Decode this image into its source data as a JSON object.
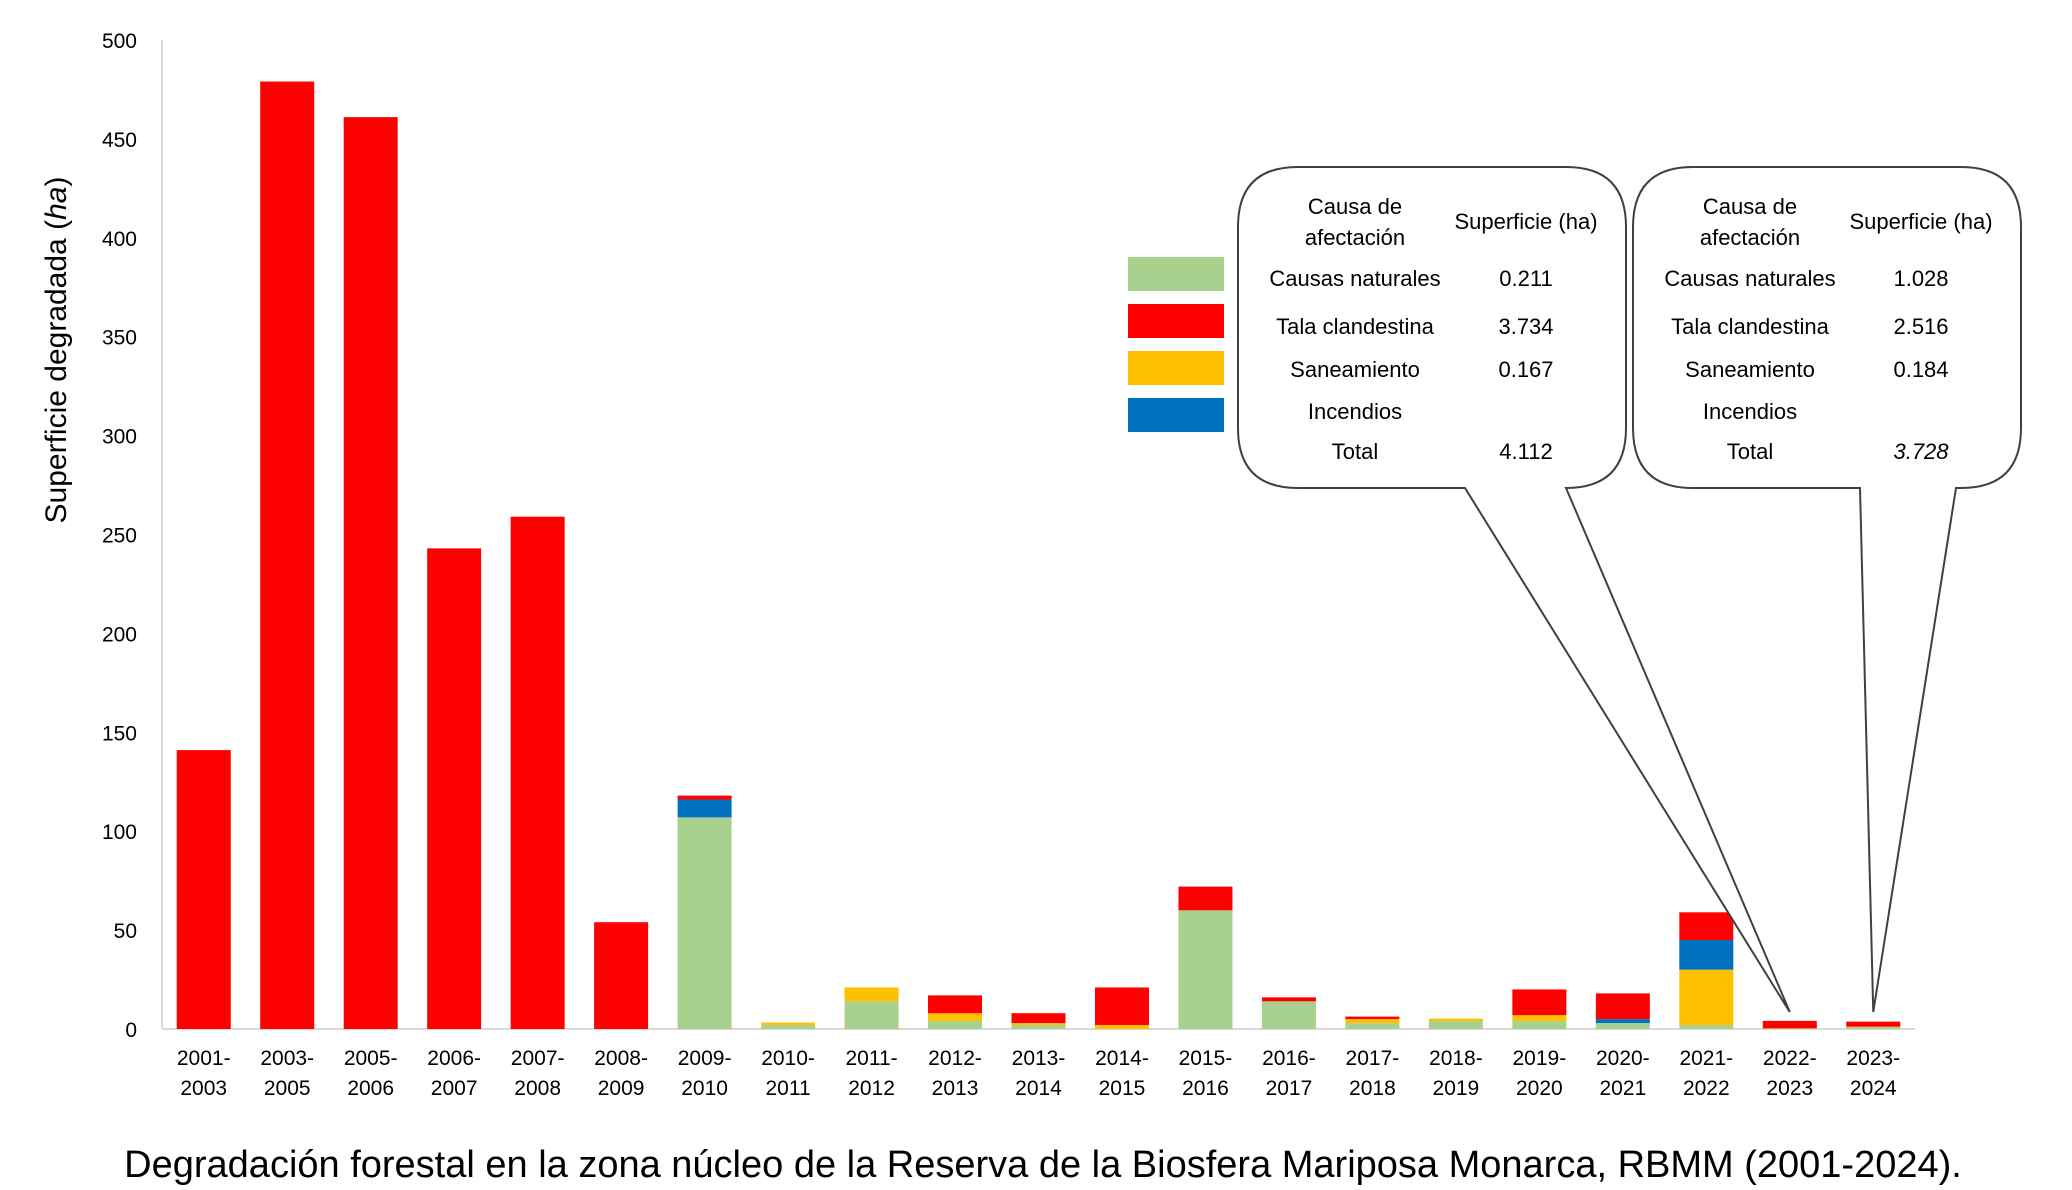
{
  "chart_data": {
    "type": "bar",
    "stacked": true,
    "title": "",
    "caption": "Degradación forestal en la zona núcleo de la Reserva de la Biosfera Mariposa Monarca, RBMM (2001-2024).",
    "xlabel": "",
    "ylabel": "Superficie degradada",
    "ylabel_unit": "ha",
    "ylabel_open": "(",
    "ylabel_close": ")",
    "ylim": [
      0,
      500
    ],
    "yticks": [
      "0",
      "50",
      "100",
      "150",
      "200",
      "250",
      "300",
      "350",
      "400",
      "450",
      "500"
    ],
    "grid": false,
    "categories": [
      [
        "2001-",
        "2003"
      ],
      [
        "2003-",
        "2005"
      ],
      [
        "2005-",
        "2006"
      ],
      [
        "2006-",
        "2007"
      ],
      [
        "2007-",
        "2008"
      ],
      [
        "2008-",
        "2009"
      ],
      [
        "2009-",
        "2010"
      ],
      [
        "2010-",
        "2011"
      ],
      [
        "2011-",
        "2012"
      ],
      [
        "2012-",
        "2013"
      ],
      [
        "2013-",
        "2014"
      ],
      [
        "2014-",
        "2015"
      ],
      [
        "2015-",
        "2016"
      ],
      [
        "2016-",
        "2017"
      ],
      [
        "2017-",
        "2018"
      ],
      [
        "2018-",
        "2019"
      ],
      [
        "2019-",
        "2020"
      ],
      [
        "2020-",
        "2021"
      ],
      [
        "2021-",
        "2022"
      ],
      [
        "2022-",
        "2023"
      ],
      [
        "2023-",
        "2024"
      ]
    ],
    "series": [
      {
        "key": "natural",
        "color": "#a9d18e",
        "values": [
          0,
          0,
          0,
          0,
          0,
          0,
          107,
          2,
          14,
          4,
          2,
          0,
          60,
          14,
          3,
          4,
          4,
          3,
          2,
          0.211,
          1.028
        ]
      },
      {
        "key": "saneamiento",
        "color": "#ffc000",
        "values": [
          0,
          0,
          0,
          0,
          0,
          0,
          0,
          1,
          7,
          4,
          1,
          2,
          0,
          0,
          2,
          1,
          3,
          0,
          28,
          0.167,
          0.184
        ]
      },
      {
        "key": "incendios",
        "color": "#0070c0",
        "values": [
          0,
          0,
          0,
          0,
          0,
          0,
          9,
          0,
          0,
          0,
          0,
          0,
          0,
          0,
          0,
          0,
          0,
          2,
          15,
          0,
          0
        ]
      },
      {
        "key": "tala",
        "color": "#ff0000",
        "values": [
          141,
          479,
          461,
          243,
          259,
          54,
          2,
          0,
          0,
          9,
          5,
          19,
          12,
          2,
          1,
          0,
          13,
          13,
          14,
          3.734,
          2.516
        ]
      }
    ],
    "legend": {
      "placement": "right",
      "swatch_colors": [
        "#a9d18e",
        "#ff0000",
        "#ffc000",
        "#0070c0"
      ]
    },
    "callouts": [
      {
        "target_category": 19,
        "header_cause": [
          "Causa de",
          "afectación"
        ],
        "header_area": "Superficie (ha)",
        "rows": [
          {
            "cause": "Causas naturales",
            "value": "0.211"
          },
          {
            "cause": "Tala clandestina",
            "value": "3.734"
          },
          {
            "cause": "Saneamiento",
            "value": "0.167"
          },
          {
            "cause": "Incendios",
            "value": ""
          },
          {
            "cause": "Total",
            "value": "4.112"
          }
        ]
      },
      {
        "target_category": 20,
        "header_cause": [
          "Causa de",
          "afectación"
        ],
        "header_area": "Superficie (ha)",
        "rows": [
          {
            "cause": "Causas naturales",
            "value": "1.028"
          },
          {
            "cause": "Tala clandestina",
            "value": "2.516"
          },
          {
            "cause": "Saneamiento",
            "value": "0.184"
          },
          {
            "cause": "Incendios",
            "value": ""
          },
          {
            "cause": "Total",
            "value": "3.728",
            "italic": true
          }
        ]
      }
    ]
  }
}
